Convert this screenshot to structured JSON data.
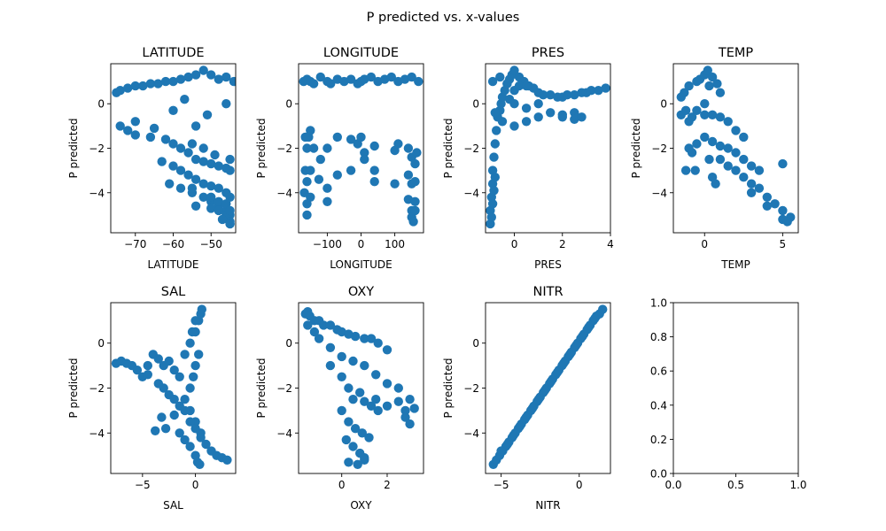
{
  "figure": {
    "suptitle": "P predicted vs. x-values",
    "marker_color": "#1f77b4"
  },
  "chart_data": [
    {
      "type": "scatter",
      "title": "LATITUDE",
      "xlabel": "LATITUDE",
      "ylabel": "P predicted",
      "xlim": [
        -76.5,
        -43.5
      ],
      "ylim": [
        -5.8,
        1.8
      ],
      "xticks": [
        -70,
        -60,
        -50
      ],
      "yticks": [
        0,
        -2,
        -4
      ],
      "series": [
        {
          "x": [
            -75,
            -74,
            -72,
            -70,
            -68,
            -66,
            -64,
            -62,
            -60,
            -58,
            -56,
            -54,
            -52,
            -50,
            -48,
            -46,
            -44,
            -74,
            -72,
            -70,
            -66,
            -62,
            -60,
            -58,
            -56,
            -54,
            -52,
            -50,
            -48,
            -46,
            -45,
            -63,
            -60,
            -58,
            -56,
            -54,
            -52,
            -50,
            -48,
            -46,
            -45,
            -61,
            -58,
            -55,
            -52,
            -50,
            -48,
            -46,
            -45,
            -54,
            -50,
            -48,
            -46,
            -45,
            -55,
            -50,
            -47,
            -45,
            -48,
            -46,
            -45,
            -45,
            -46,
            -51,
            -54,
            -57,
            -60,
            -70,
            -65,
            -55,
            -52,
            -49,
            -45
          ],
          "y": [
            0.5,
            0.6,
            0.7,
            0.8,
            0.8,
            0.9,
            0.9,
            1.0,
            1.0,
            1.1,
            1.2,
            1.3,
            1.5,
            1.3,
            1.1,
            1.2,
            1.0,
            -1.0,
            -1.2,
            -1.4,
            -1.5,
            -1.6,
            -1.8,
            -2.0,
            -2.2,
            -2.5,
            -2.6,
            -2.7,
            -2.8,
            -2.9,
            -3.0,
            -2.6,
            -2.8,
            -3.0,
            -3.2,
            -3.4,
            -3.6,
            -3.7,
            -3.8,
            -4.0,
            -4.2,
            -3.6,
            -3.8,
            -4.0,
            -4.2,
            -4.4,
            -4.6,
            -4.8,
            -5.0,
            -4.6,
            -4.7,
            -4.8,
            -5.0,
            -5.3,
            -3.8,
            -4.2,
            -5.2,
            -5.4,
            -4.4,
            -4.5,
            -4.8,
            -5.4,
            0.0,
            -0.5,
            -1.0,
            0.2,
            -0.3,
            -0.8,
            -1.1,
            -1.8,
            -2.0,
            -2.3,
            -2.5
          ]
        }
      ]
    },
    {
      "type": "scatter",
      "title": "LONGITUDE",
      "xlabel": "LONGITUDE",
      "ylabel": "P predicted",
      "xlim": [
        -185,
        185
      ],
      "ylim": [
        -5.8,
        1.8
      ],
      "xticks": [
        -100,
        0,
        100
      ],
      "yticks": [
        0,
        -2,
        -4
      ],
      "series": [
        {
          "x": [
            -170,
            -160,
            -150,
            -140,
            -120,
            -100,
            -90,
            -70,
            -50,
            -30,
            -10,
            0,
            10,
            30,
            50,
            70,
            90,
            110,
            130,
            150,
            170,
            -165,
            -160,
            -155,
            -150,
            -140,
            -120,
            -100,
            -70,
            -30,
            -10,
            0,
            10,
            40,
            100,
            110,
            140,
            150,
            160,
            165,
            -165,
            -160,
            -150,
            -125,
            -100,
            -70,
            10,
            40,
            140,
            150,
            160,
            -168,
            -160,
            -150,
            140,
            150,
            160,
            -160,
            150,
            155,
            160,
            -100,
            -30,
            40,
            100
          ],
          "y": [
            1.0,
            1.1,
            1.0,
            0.9,
            1.2,
            1.0,
            0.9,
            1.1,
            1.0,
            1.1,
            0.9,
            1.0,
            1.1,
            1.2,
            1.0,
            1.1,
            1.2,
            1.0,
            1.1,
            1.2,
            1.0,
            -1.5,
            -2.0,
            -1.5,
            -1.2,
            -2.0,
            -2.5,
            -2.0,
            -1.5,
            -1.6,
            -1.8,
            -1.5,
            -2.2,
            -1.9,
            -2.1,
            -1.8,
            -2.0,
            -2.4,
            -2.7,
            -2.2,
            -3.0,
            -3.5,
            -3.0,
            -3.4,
            -3.8,
            -3.2,
            -2.5,
            -3.0,
            -3.2,
            -3.6,
            -3.5,
            -4.0,
            -4.5,
            -4.2,
            -4.3,
            -4.8,
            -4.4,
            -5.0,
            -5.1,
            -5.3,
            -4.8,
            -4.4,
            -3.0,
            -3.5,
            -3.6
          ]
        }
      ]
    },
    {
      "type": "scatter",
      "title": "PRES",
      "xlabel": "PRES",
      "ylabel": "P predicted",
      "xlim": [
        -1.2,
        4.0
      ],
      "ylim": [
        -5.8,
        1.8
      ],
      "xticks": [
        0,
        2,
        4
      ],
      "yticks": [
        0,
        -2,
        -4
      ],
      "series": [
        {
          "x": [
            -1.0,
            -1.0,
            -0.95,
            -0.9,
            -0.9,
            -0.85,
            -0.8,
            -0.75,
            -0.7,
            -0.6,
            -0.55,
            -0.5,
            -0.4,
            -0.3,
            -0.2,
            -0.1,
            0.0,
            0.2,
            0.4,
            0.6,
            0.8,
            1.0,
            1.2,
            1.5,
            1.8,
            2.0,
            2.2,
            2.5,
            2.8,
            3.0,
            3.2,
            3.5,
            3.8,
            -0.9,
            -0.6,
            -0.3,
            0.0,
            0.5,
            1.0,
            1.5,
            2.0,
            2.5,
            -0.8,
            -0.5,
            0.0,
            0.5,
            1.0,
            2.0,
            2.5,
            2.8,
            -0.2,
            0.0,
            0.2,
            0.5,
            -0.95,
            -0.9,
            -0.85,
            -0.8
          ],
          "y": [
            -5.4,
            -4.8,
            -4.2,
            -3.6,
            -3.0,
            -2.4,
            -1.8,
            -1.2,
            -0.6,
            -0.3,
            0.0,
            0.3,
            0.6,
            0.9,
            1.1,
            1.3,
            1.5,
            1.2,
            1.0,
            0.8,
            0.7,
            0.5,
            0.4,
            0.4,
            0.3,
            0.3,
            0.4,
            0.4,
            0.5,
            0.5,
            0.6,
            0.6,
            0.7,
            1.0,
            1.2,
            0.9,
            0.0,
            -0.2,
            0.0,
            -0.4,
            -0.6,
            -0.4,
            -0.4,
            -0.8,
            -1.0,
            -0.8,
            -0.6,
            -0.5,
            -0.7,
            -0.6,
            0.2,
            0.6,
            0.8,
            0.8,
            -5.1,
            -4.5,
            -3.9,
            -3.3
          ]
        }
      ]
    },
    {
      "type": "scatter",
      "title": "TEMP",
      "xlabel": "TEMP",
      "ylabel": "P predicted",
      "xlim": [
        -2.0,
        6.0
      ],
      "ylim": [
        -5.8,
        1.8
      ],
      "xticks": [
        0,
        5
      ],
      "yticks": [
        0,
        -2,
        -4
      ],
      "series": [
        {
          "x": [
            -1.5,
            -1.3,
            -1.0,
            -0.5,
            -0.3,
            0.0,
            0.2,
            0.5,
            0.8,
            1.0,
            -1.5,
            -1.2,
            -1.0,
            -0.8,
            -0.5,
            0.0,
            0.5,
            1.0,
            1.5,
            2.0,
            2.5,
            -1.0,
            -0.8,
            -0.5,
            0.0,
            0.5,
            1.0,
            1.5,
            2.0,
            2.5,
            3.0,
            3.5,
            1.0,
            1.5,
            2.0,
            2.5,
            3.0,
            3.5,
            4.0,
            4.5,
            5.0,
            5.5,
            -1.2,
            -0.6,
            0.3,
            0.7,
            0.5,
            5.0,
            3.0,
            4.0,
            5.0,
            5.3,
            0.0,
            0.3
          ],
          "y": [
            0.3,
            0.5,
            0.8,
            1.0,
            1.1,
            1.3,
            1.5,
            1.2,
            0.9,
            0.5,
            -0.5,
            -0.3,
            -0.8,
            -0.6,
            -0.3,
            -0.5,
            -0.5,
            -0.6,
            -0.8,
            -1.2,
            -1.5,
            -2.0,
            -2.2,
            -1.8,
            -1.5,
            -1.7,
            -1.9,
            -2.0,
            -2.2,
            -2.5,
            -2.8,
            -3.0,
            -2.5,
            -2.8,
            -3.0,
            -3.3,
            -3.6,
            -3.8,
            -4.2,
            -4.5,
            -4.8,
            -5.1,
            -3.0,
            -3.0,
            -2.5,
            -3.6,
            -3.3,
            -2.7,
            -4.0,
            -4.6,
            -5.2,
            -5.3,
            0.0,
            0.8
          ]
        }
      ]
    },
    {
      "type": "scatter",
      "title": "SAL",
      "xlabel": "SAL",
      "ylabel": "P predicted",
      "xlim": [
        -8.0,
        3.8
      ],
      "ylim": [
        -5.8,
        1.8
      ],
      "xticks": [
        -5,
        0
      ],
      "yticks": [
        0,
        -2,
        -4
      ],
      "series": [
        {
          "x": [
            -7.5,
            -7.0,
            -6.5,
            -6.0,
            -5.5,
            -5.0,
            -4.5,
            -4.0,
            -3.5,
            -3.0,
            -2.5,
            -2.0,
            -1.5,
            -1.0,
            -0.5,
            0.0,
            0.3,
            0.5,
            0.6,
            -0.5,
            -0.2,
            0.0,
            0.3,
            -1.0,
            -0.5,
            0.0,
            0.5,
            -3.0,
            -2.5,
            -2.0,
            -1.5,
            -1.0,
            -0.5,
            0.0,
            0.5,
            1.0,
            1.5,
            2.0,
            2.5,
            3.0,
            -4.5,
            -3.5,
            -3.2,
            -2.0,
            -1.5,
            -1.0,
            -0.5,
            0.0,
            0.2,
            0.4,
            -0.3,
            0.0,
            -2.8,
            -3.8
          ],
          "y": [
            -0.9,
            -0.8,
            -0.9,
            -1.0,
            -1.2,
            -1.5,
            -1.0,
            -0.5,
            -0.7,
            -1.0,
            -0.8,
            -1.2,
            -1.5,
            -0.5,
            0.0,
            0.5,
            1.0,
            1.3,
            1.5,
            -2.0,
            -1.5,
            -1.0,
            -0.5,
            -2.5,
            -3.0,
            -3.5,
            -4.0,
            -2.0,
            -2.3,
            -2.5,
            -2.8,
            -3.0,
            -3.5,
            -3.8,
            -4.2,
            -4.5,
            -4.8,
            -5.0,
            -5.1,
            -5.2,
            -1.4,
            -1.8,
            -3.3,
            -3.2,
            -4.0,
            -4.3,
            -4.6,
            -5.0,
            -5.3,
            -5.4,
            0.5,
            1.0,
            -3.8,
            -3.9
          ]
        }
      ]
    },
    {
      "type": "scatter",
      "title": "OXY",
      "xlabel": "OXY",
      "ylabel": "P predicted",
      "xlim": [
        -1.9,
        3.6
      ],
      "ylim": [
        -5.8,
        1.8
      ],
      "xticks": [
        0,
        2
      ],
      "yticks": [
        0,
        -2,
        -4
      ],
      "series": [
        {
          "x": [
            -1.6,
            -1.5,
            -1.4,
            -1.2,
            -1.0,
            -0.8,
            -0.5,
            -0.2,
            0.0,
            0.3,
            0.6,
            1.0,
            1.3,
            1.6,
            2.0,
            -1.5,
            -1.2,
            -1.0,
            -0.5,
            0.0,
            0.5,
            1.0,
            1.5,
            2.0,
            2.5,
            3.0,
            -0.5,
            0.0,
            0.3,
            0.5,
            0.8,
            1.0,
            1.3,
            1.6,
            0.0,
            0.3,
            0.6,
            0.9,
            1.2,
            0.2,
            0.5,
            0.8,
            1.0,
            0.3,
            0.7,
            1.0,
            1.5,
            2.0,
            2.5,
            2.8,
            3.2,
            2.8,
            3.0
          ],
          "y": [
            1.3,
            1.4,
            1.2,
            1.0,
            1.0,
            0.8,
            0.8,
            0.6,
            0.5,
            0.4,
            0.3,
            0.2,
            0.2,
            0.0,
            -0.3,
            0.8,
            0.5,
            0.2,
            -0.2,
            -0.6,
            -0.8,
            -1.0,
            -1.4,
            -1.8,
            -2.0,
            -2.5,
            -1.0,
            -1.5,
            -2.0,
            -2.5,
            -2.2,
            -2.6,
            -2.8,
            -3.0,
            -3.0,
            -3.5,
            -3.8,
            -4.0,
            -4.2,
            -4.3,
            -4.6,
            -4.9,
            -5.1,
            -5.3,
            -5.4,
            -5.2,
            -2.5,
            -2.8,
            -2.6,
            -3.0,
            -2.9,
            -3.3,
            -3.6
          ]
        }
      ]
    },
    {
      "type": "scatter",
      "title": "NITR",
      "xlabel": "NITR",
      "ylabel": "P predicted",
      "xlim": [
        -6.0,
        2.0
      ],
      "ylim": [
        -5.8,
        1.8
      ],
      "xticks": [
        -5,
        0
      ],
      "yticks": [
        0,
        -2,
        -4
      ],
      "series": [
        {
          "x": [
            -5.5,
            -5.3,
            -5.1,
            -4.9,
            -4.7,
            -4.5,
            -4.3,
            -4.1,
            -3.9,
            -3.7,
            -3.5,
            -3.3,
            -3.1,
            -2.9,
            -2.7,
            -2.5,
            -2.3,
            -2.1,
            -1.9,
            -1.7,
            -1.5,
            -1.3,
            -1.1,
            -0.9,
            -0.7,
            -0.5,
            -0.3,
            -0.1,
            0.1,
            0.3,
            0.5,
            0.7,
            0.9,
            1.1,
            1.3,
            1.5,
            -5.0,
            -4.6,
            -4.2,
            -3.8,
            -3.4,
            -3.0,
            -2.6,
            -2.2,
            -1.8,
            -1.4,
            -1.0,
            -0.6,
            -0.2,
            0.2,
            0.6,
            1.0
          ],
          "y": [
            -5.4,
            -5.2,
            -5.0,
            -4.8,
            -4.6,
            -4.4,
            -4.2,
            -4.0,
            -3.8,
            -3.6,
            -3.4,
            -3.2,
            -3.0,
            -2.8,
            -2.6,
            -2.4,
            -2.2,
            -2.0,
            -1.8,
            -1.6,
            -1.4,
            -1.2,
            -1.0,
            -0.8,
            -0.6,
            -0.4,
            -0.2,
            0.0,
            0.2,
            0.4,
            0.6,
            0.8,
            1.0,
            1.2,
            1.3,
            1.5,
            -4.8,
            -4.5,
            -4.1,
            -3.7,
            -3.3,
            -2.9,
            -2.5,
            -2.1,
            -1.7,
            -1.3,
            -0.9,
            -0.5,
            -0.1,
            0.3,
            0.7,
            1.1
          ]
        }
      ]
    },
    {
      "type": "scatter",
      "title": "",
      "xlabel": "",
      "ylabel": "",
      "xlim": [
        0,
        1
      ],
      "ylim": [
        0,
        1
      ],
      "xticks": [
        0.0,
        0.5,
        1.0
      ],
      "yticks": [
        0.0,
        0.2,
        0.4,
        0.6,
        0.8,
        1.0
      ],
      "xtick_labels": [
        "0.0",
        "0.5",
        "1.0"
      ],
      "ytick_labels": [
        "0.0",
        "0.2",
        "0.4",
        "0.6",
        "0.8",
        "1.0"
      ],
      "series": []
    }
  ]
}
